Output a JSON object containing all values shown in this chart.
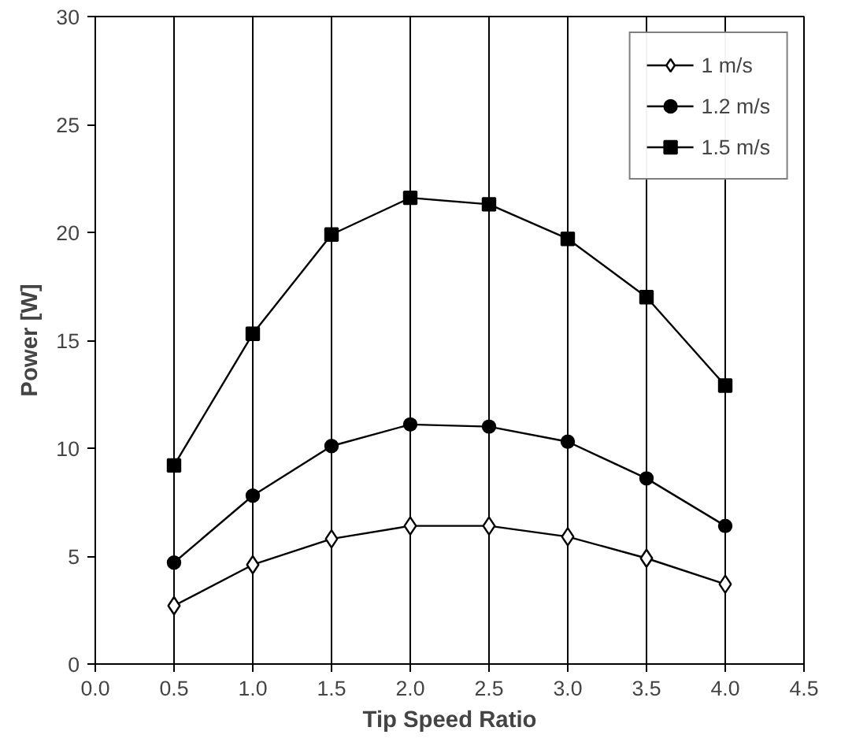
{
  "chart_data": {
    "type": "line",
    "xlabel": "Tip Speed Ratio",
    "ylabel": "Power [W]",
    "x": [
      0.5,
      1.0,
      1.5,
      2.0,
      2.5,
      3.0,
      3.5,
      4.0
    ],
    "series": [
      {
        "name": "1 m/s",
        "color": "#000000",
        "marker": "diamond",
        "values": [
          2.7,
          4.6,
          5.8,
          6.4,
          6.4,
          5.9,
          4.9,
          3.7
        ]
      },
      {
        "name": "1.2 m/s",
        "color": "#000000",
        "marker": "circle",
        "values": [
          4.7,
          7.8,
          10.1,
          11.1,
          11.0,
          10.3,
          8.6,
          6.4
        ]
      },
      {
        "name": "1.5 m/s",
        "color": "#000000",
        "marker": "square",
        "values": [
          9.2,
          15.3,
          19.9,
          21.6,
          21.3,
          19.7,
          17.0,
          12.9
        ]
      }
    ],
    "xlim": [
      0,
      4.5
    ],
    "ylim": [
      0,
      30
    ],
    "xticks": [
      {
        "value": 0,
        "label": "0.0"
      },
      {
        "value": 0.5,
        "label": "0.5"
      },
      {
        "value": 1,
        "label": "1.0"
      },
      {
        "value": 1.5,
        "label": "1.5"
      },
      {
        "value": 2,
        "label": "2.0"
      },
      {
        "value": 2.5,
        "label": "2.5"
      },
      {
        "value": 3,
        "label": "3.0"
      },
      {
        "value": 3.5,
        "label": "3.5"
      },
      {
        "value": 4,
        "label": "4.0"
      },
      {
        "value": 4.5,
        "label": "4.5"
      }
    ],
    "yticks": [
      0,
      5,
      10,
      15,
      20,
      25,
      30
    ],
    "grid": "x",
    "legend": "top right",
    "line_style": "solid"
  }
}
